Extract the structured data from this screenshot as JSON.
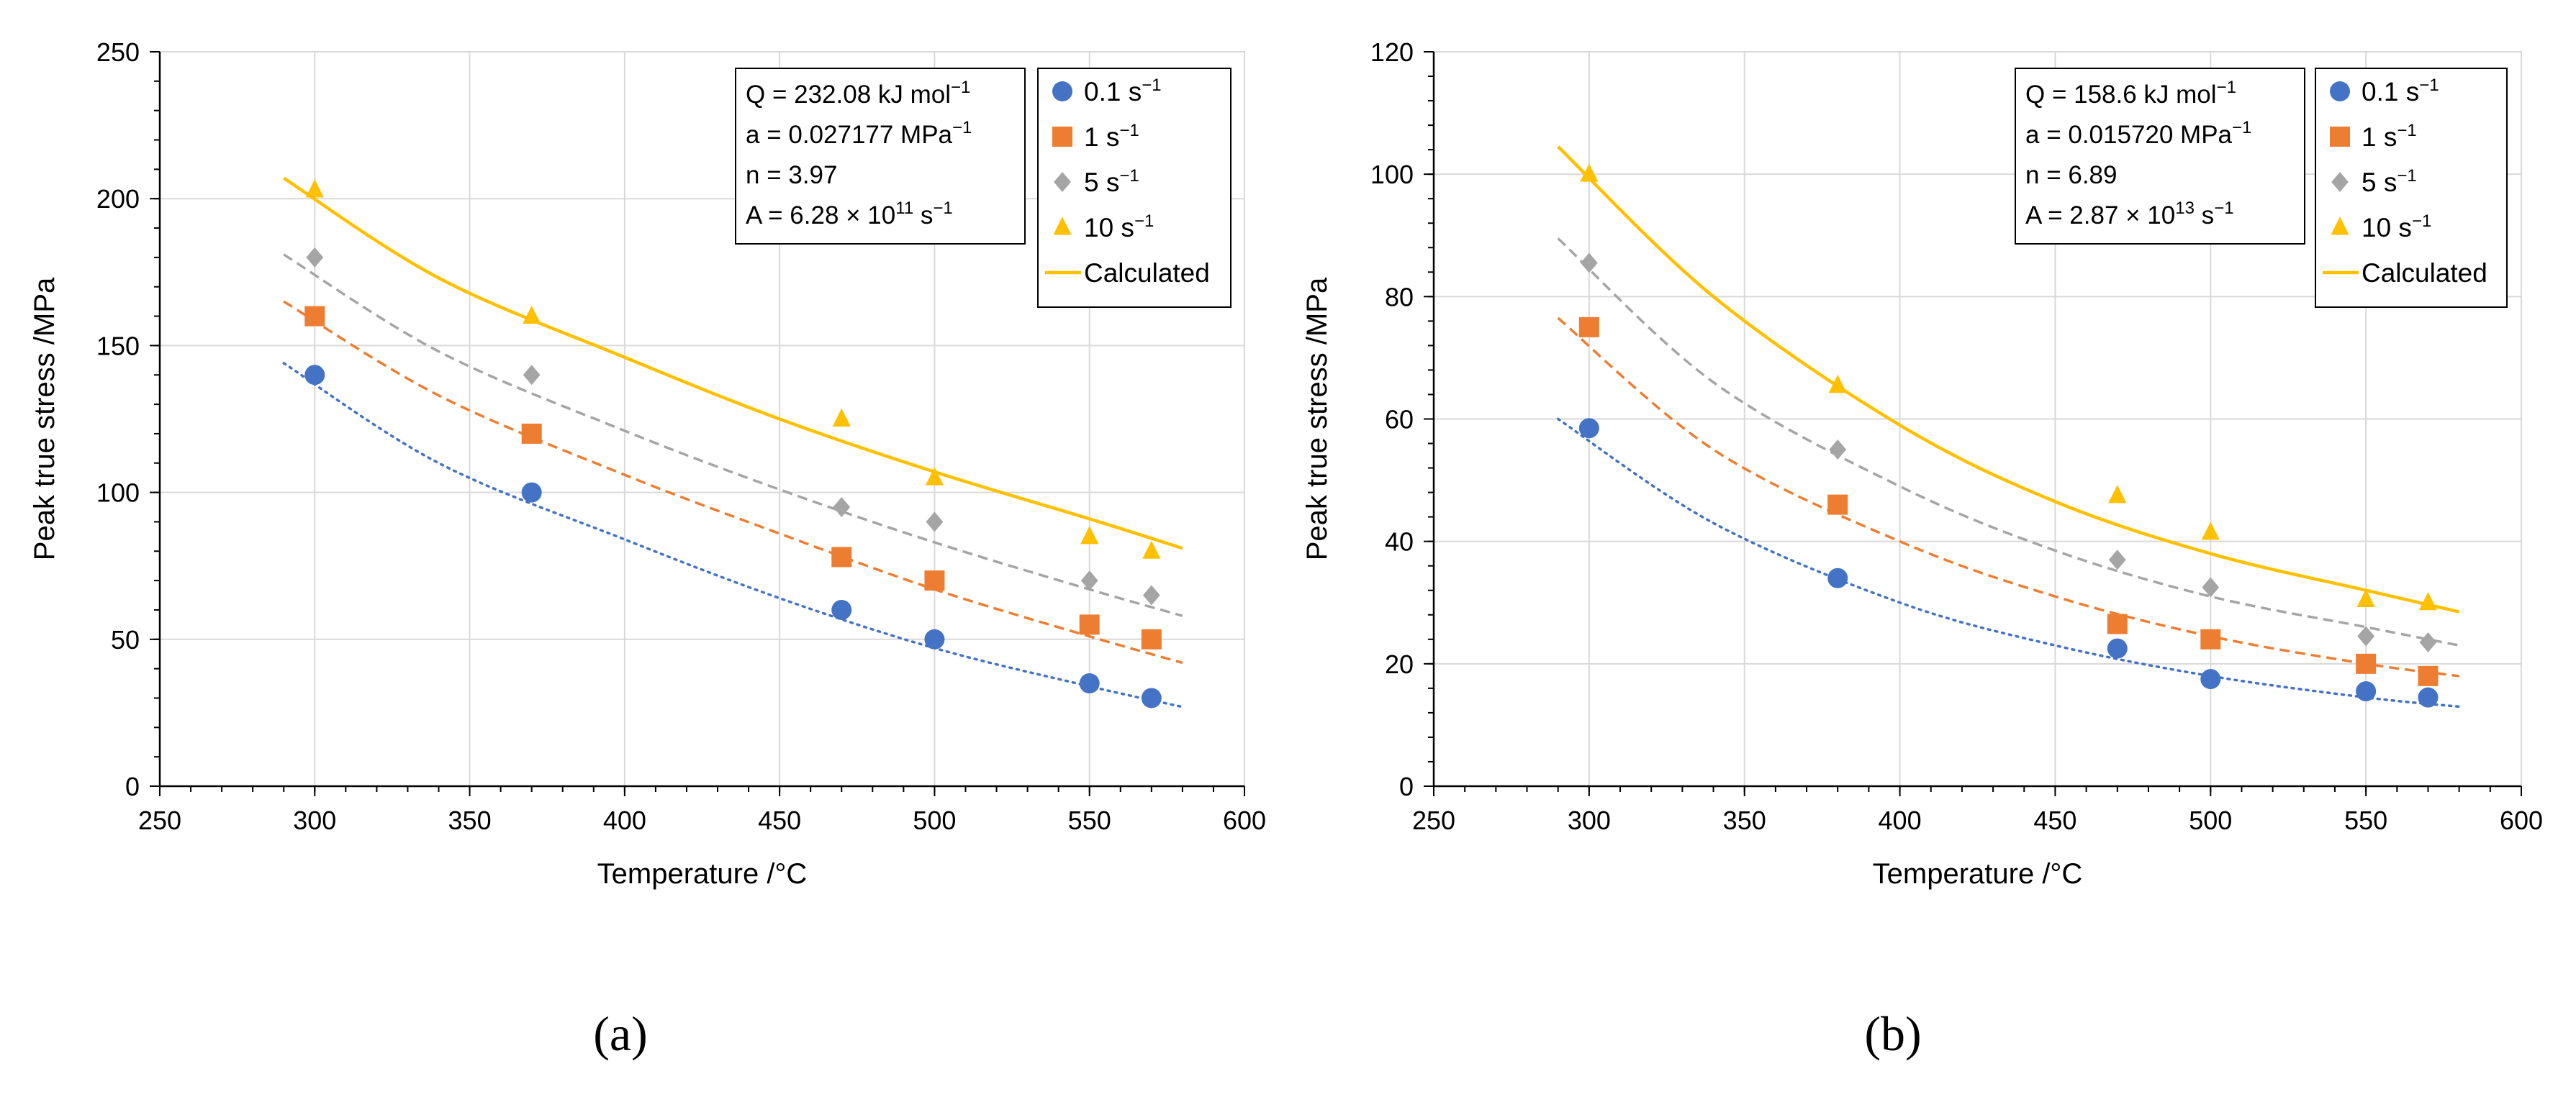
{
  "figure": {
    "panel_labels": [
      "(a)",
      "(b)"
    ]
  },
  "chart_data": [
    {
      "type": "scatter",
      "panel": "a",
      "title": "",
      "xlabel": "Temperature /°C",
      "ylabel": "Peak true stress /MPa",
      "xlim": [
        250,
        600
      ],
      "ylim": [
        0,
        250
      ],
      "xticks": [
        250,
        300,
        350,
        400,
        450,
        500,
        550,
        600
      ],
      "yticks": [
        0,
        50,
        100,
        150,
        200,
        250
      ],
      "grid": true,
      "info_box": {
        "lines": [
          {
            "pre": "Q = 232.08 kJ mol",
            "sup": "−1",
            "post": ""
          },
          {
            "pre": "a = 0.027177 MPa",
            "sup": "−1",
            "post": ""
          },
          {
            "pre": "n = 3.97",
            "sup": "",
            "post": ""
          },
          {
            "pre": "A = 6.28 × 10",
            "sup": "11",
            "post": " s",
            "sup2": "−1"
          }
        ]
      },
      "legend_position": "top-right",
      "series": [
        {
          "name": "0.1 s",
          "unit_sup": "−1",
          "marker": "circle",
          "color": "#4472C4",
          "line": "dotted",
          "x": [
            300,
            370,
            470,
            500,
            550,
            570
          ],
          "values": [
            140,
            100,
            60,
            50,
            35,
            30
          ],
          "fit_x": [
            290,
            340,
            400,
            450,
            500,
            550,
            580
          ],
          "fit_y": [
            144,
            110,
            84,
            64,
            47,
            34,
            27
          ]
        },
        {
          "name": "1  s",
          "unit_sup": "−1",
          "marker": "square",
          "color": "#ED7D31",
          "line": "dashed",
          "x": [
            300,
            370,
            470,
            500,
            550,
            570
          ],
          "values": [
            160,
            120,
            78,
            70,
            55,
            50
          ],
          "fit_x": [
            290,
            340,
            400,
            450,
            500,
            550,
            580
          ],
          "fit_y": [
            165,
            133,
            106,
            86,
            67,
            51,
            42
          ]
        },
        {
          "name": "5  s",
          "unit_sup": "−1",
          "marker": "diamond",
          "color": "#A5A5A5",
          "line": "dashed",
          "x": [
            300,
            370,
            470,
            500,
            550,
            570
          ],
          "values": [
            180,
            140,
            95,
            90,
            70,
            65
          ],
          "fit_x": [
            290,
            340,
            400,
            450,
            500,
            550,
            580
          ],
          "fit_y": [
            181,
            148,
            121,
            101,
            83,
            67,
            58
          ]
        },
        {
          "name": "10  s",
          "unit_sup": "−1",
          "marker": "triangle",
          "color": "#FFC000",
          "line": "solid",
          "x": [
            300,
            370,
            470,
            500,
            550,
            570
          ],
          "values": [
            203,
            160,
            125,
            105,
            85,
            80
          ],
          "fit_x": [
            290,
            340,
            400,
            450,
            500,
            550,
            580
          ],
          "fit_y": [
            207,
            173,
            146,
            125,
            107,
            91,
            81
          ]
        }
      ],
      "calculated_label": "Calculated",
      "calculated_color": "#FFC000"
    },
    {
      "type": "scatter",
      "panel": "b",
      "title": "",
      "xlabel": "Temperature /°C",
      "ylabel": "Peak true stress /MPa",
      "xlim": [
        250,
        600
      ],
      "ylim": [
        0,
        120
      ],
      "xticks": [
        250,
        300,
        350,
        400,
        450,
        500,
        550,
        600
      ],
      "yticks": [
        0,
        20,
        40,
        60,
        80,
        100,
        120
      ],
      "grid": true,
      "info_box": {
        "lines": [
          {
            "pre": "Q = 158.6 kJ mol",
            "sup": "−1",
            "post": ""
          },
          {
            "pre": "a = 0.015720 MPa",
            "sup": "−1",
            "post": ""
          },
          {
            "pre": "n = 6.89",
            "sup": "",
            "post": ""
          },
          {
            "pre": "A = 2.87 × 10",
            "sup": "13",
            "post": " s",
            "sup2": "−1"
          }
        ]
      },
      "legend_position": "top-right",
      "series": [
        {
          "name": "0.1 s",
          "unit_sup": "−1",
          "marker": "circle",
          "color": "#4472C4",
          "line": "dotted",
          "x": [
            300,
            380,
            470,
            500,
            550,
            570
          ],
          "values": [
            58.5,
            34,
            22.5,
            17.5,
            15.5,
            14.5
          ],
          "fit_x": [
            290,
            340,
            400,
            450,
            500,
            550,
            580
          ],
          "fit_y": [
            60,
            43,
            30,
            23,
            18,
            14.5,
            13
          ]
        },
        {
          "name": "1  s",
          "unit_sup": "−1",
          "marker": "square",
          "color": "#ED7D31",
          "line": "dashed",
          "x": [
            300,
            380,
            470,
            500,
            550,
            570
          ],
          "values": [
            75,
            46,
            26.5,
            24,
            20,
            18
          ],
          "fit_x": [
            290,
            340,
            400,
            450,
            500,
            550,
            580
          ],
          "fit_y": [
            76.5,
            55,
            40,
            31,
            24.5,
            20,
            18
          ]
        },
        {
          "name": "5  s",
          "unit_sup": "−1",
          "marker": "diamond",
          "color": "#A5A5A5",
          "line": "dashed",
          "x": [
            300,
            380,
            470,
            500,
            550,
            570
          ],
          "values": [
            85.5,
            55,
            37,
            32.5,
            24.5,
            23.5
          ],
          "fit_x": [
            290,
            340,
            400,
            450,
            500,
            550,
            580
          ],
          "fit_y": [
            89.5,
            66,
            49,
            38.5,
            31,
            26,
            23
          ]
        },
        {
          "name": "10  s",
          "unit_sup": "−1",
          "marker": "triangle",
          "color": "#FFC000",
          "line": "solid",
          "x": [
            300,
            380,
            470,
            500,
            550,
            570
          ],
          "values": [
            100,
            65.5,
            47.5,
            41.5,
            30.5,
            30
          ],
          "fit_x": [
            290,
            340,
            400,
            450,
            500,
            550,
            580
          ],
          "fit_y": [
            104.5,
            80,
            59,
            46.5,
            38,
            32,
            28.5
          ]
        }
      ],
      "calculated_label": "Calculated",
      "calculated_color": "#FFC000"
    }
  ]
}
